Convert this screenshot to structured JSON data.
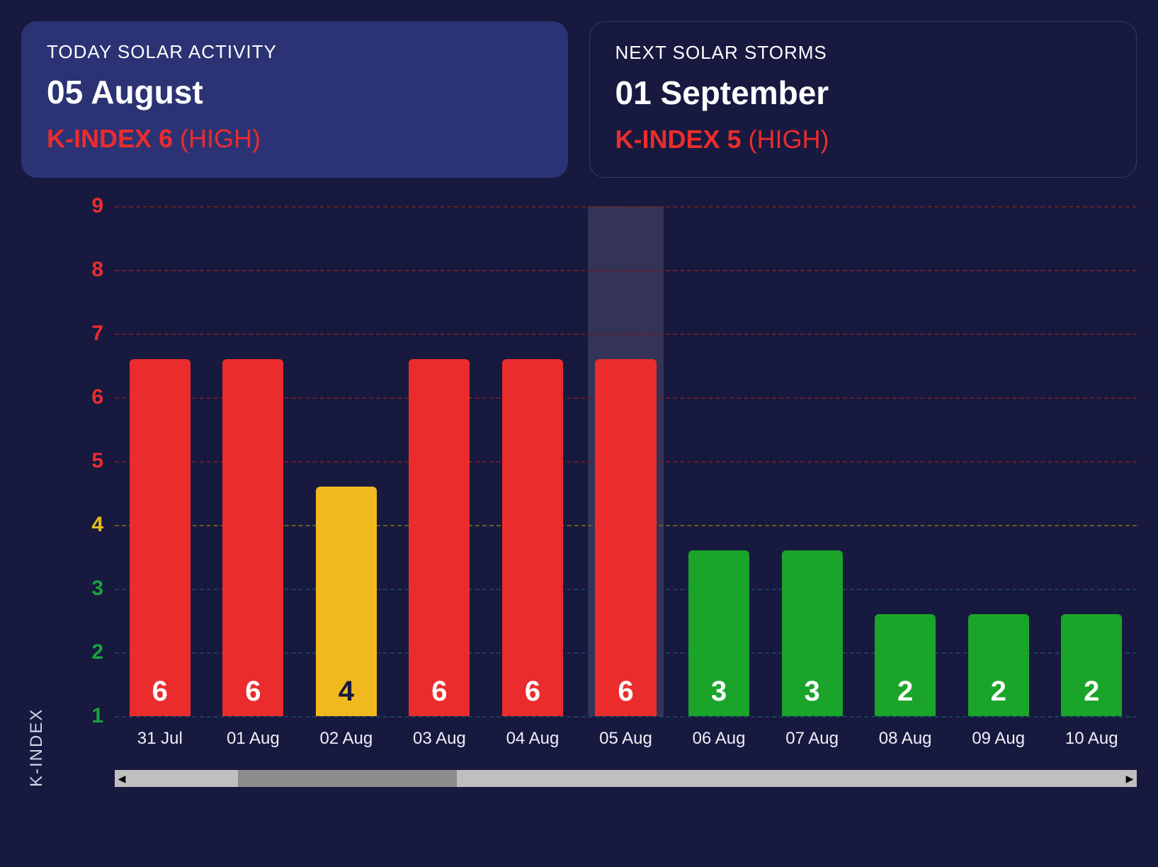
{
  "background_color": "#17193f",
  "cards": {
    "today": {
      "title": "TODAY SOLAR ACTIVITY",
      "date": "05 August",
      "kindex_label": "K-INDEX 6",
      "level_label": "(HIGH)",
      "kindex_color": "#eb2c2d",
      "bg_color": "#2c3374"
    },
    "next": {
      "title": "NEXT SOLAR STORMS",
      "date": "01 September",
      "kindex_label": "K-INDEX 5",
      "level_label": "(HIGH)",
      "kindex_color": "#eb2c2d",
      "border_color": "#2e3a70"
    }
  },
  "chart": {
    "type": "bar",
    "y_title": "K-INDEX",
    "ylim": [
      1,
      9
    ],
    "yticks": [
      {
        "v": 1,
        "color": "#18a23a"
      },
      {
        "v": 2,
        "color": "#18a23a"
      },
      {
        "v": 3,
        "color": "#18a23a"
      },
      {
        "v": 4,
        "color": "#e7ba1e"
      },
      {
        "v": 5,
        "color": "#eb2c2d"
      },
      {
        "v": 6,
        "color": "#eb2c2d"
      },
      {
        "v": 7,
        "color": "#eb2c2d"
      },
      {
        "v": 8,
        "color": "#eb2c2d"
      },
      {
        "v": 9,
        "color": "#eb2c2d"
      }
    ],
    "grid_colors": {
      "low": "#1c3f5a",
      "mid": "#6a5a1e",
      "high": "#6a1f28"
    },
    "bars": [
      {
        "label": "31 Jul",
        "value": 6,
        "color": "#eb2c2d",
        "text_color": "#ffffff"
      },
      {
        "label": "01 Aug",
        "value": 6,
        "color": "#eb2c2d",
        "text_color": "#ffffff"
      },
      {
        "label": "02 Aug",
        "value": 4,
        "color": "#f2b91f",
        "text_color": "#17193f"
      },
      {
        "label": "03 Aug",
        "value": 6,
        "color": "#eb2c2d",
        "text_color": "#ffffff"
      },
      {
        "label": "04 Aug",
        "value": 6,
        "color": "#eb2c2d",
        "text_color": "#ffffff"
      },
      {
        "label": "05 Aug",
        "value": 6,
        "color": "#eb2c2d",
        "text_color": "#ffffff",
        "highlight": true
      },
      {
        "label": "06 Aug",
        "value": 3,
        "color": "#1aa42a",
        "text_color": "#ffffff"
      },
      {
        "label": "07 Aug",
        "value": 3,
        "color": "#1aa42a",
        "text_color": "#ffffff"
      },
      {
        "label": "08 Aug",
        "value": 2,
        "color": "#1aa42a",
        "text_color": "#ffffff"
      },
      {
        "label": "09 Aug",
        "value": 2,
        "color": "#1aa42a",
        "text_color": "#ffffff"
      },
      {
        "label": "10 Aug",
        "value": 2,
        "color": "#1aa42a",
        "text_color": "#ffffff"
      }
    ],
    "bar_height_offset": 0.6,
    "bar_width_pct": 80,
    "value_fontsize": 40,
    "tick_fontsize": 30,
    "xlabel_fontsize": 24
  },
  "scrollbar": {
    "track_color": "#bfbfbf",
    "thumb_color": "#8c8c8c",
    "thumb_left_pct": 11,
    "thumb_width_pct": 22
  }
}
